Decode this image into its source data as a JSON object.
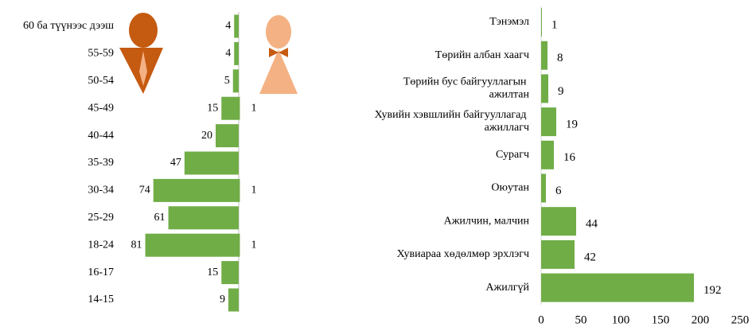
{
  "chart_data": [
    {
      "type": "pyramid",
      "categories": [
        "60 ба түүнээс дээш",
        "55-59",
        "50-54",
        "45-49",
        "40-44",
        "35-39",
        "30-34",
        "25-29",
        "18-24",
        "16-17",
        "14-15"
      ],
      "series": [
        {
          "color": "#70ad47",
          "values": [
            4,
            4,
            5,
            15,
            20,
            47,
            74,
            61,
            81,
            15,
            9
          ]
        },
        {
          "color": "#70ad47",
          "values": [
            null,
            null,
            null,
            1,
            null,
            null,
            1,
            null,
            1,
            null,
            null
          ]
        }
      ]
    },
    {
      "type": "barh",
      "categories": [
        "Тэнэмэл",
        "Төрийн албан хаагч",
        "Төрийн бус байгууллагын ажилтан",
        "Хувийн хэвшлийн байгууллагад ажиллагч",
        "Сурагч",
        "Оюутан",
        "Ажилчин, малчин",
        "Хувиараа хөдөлмөр эрхлэгч",
        "Ажилгүй"
      ],
      "values": [
        1,
        8,
        9,
        19,
        16,
        6,
        44,
        42,
        192
      ],
      "color": "#70ad47",
      "xlim": [
        0,
        250
      ],
      "xticks": [
        0,
        50,
        100,
        150,
        200,
        250
      ]
    }
  ]
}
